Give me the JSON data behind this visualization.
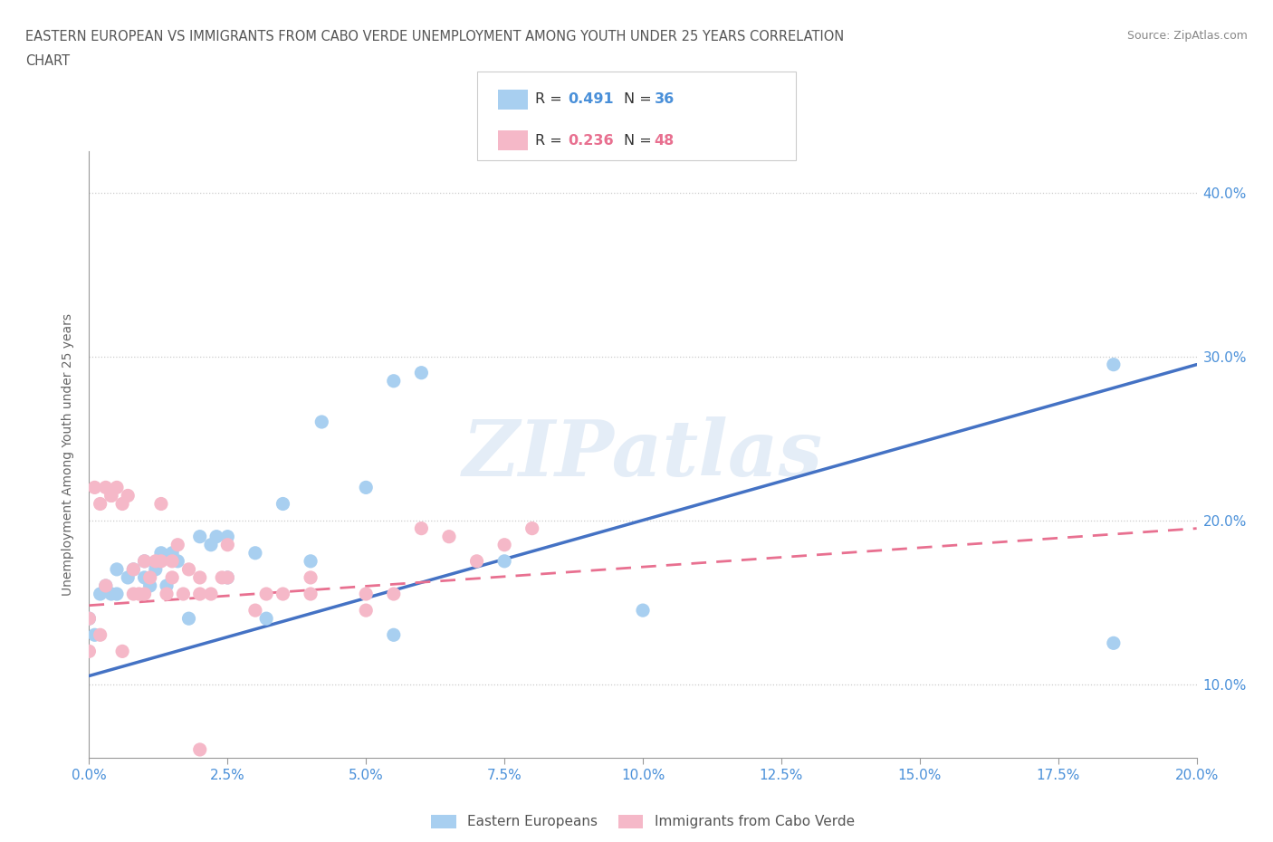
{
  "title_line1": "EASTERN EUROPEAN VS IMMIGRANTS FROM CABO VERDE UNEMPLOYMENT AMONG YOUTH UNDER 25 YEARS CORRELATION",
  "title_line2": "CHART",
  "source_text": "Source: ZipAtlas.com",
  "xlabel_ticks": [
    "0.0%",
    "2.5%",
    "5.0%",
    "7.5%",
    "10.0%",
    "12.5%",
    "15.0%",
    "17.5%",
    "20.0%"
  ],
  "ylabel_label": "Unemployment Among Youth under 25 years",
  "legend_label1": "Eastern Europeans",
  "legend_label2": "Immigrants from Cabo Verde",
  "color_blue": "#A8CFF0",
  "color_pink": "#F5B8C8",
  "color_blue_text": "#4A90D9",
  "color_pink_text": "#E87090",
  "color_blue_line": "#4472C4",
  "color_pink_line": "#E87090",
  "watermark": "ZIPatlas",
  "xlim": [
    0.0,
    0.2
  ],
  "ylim": [
    0.055,
    0.425
  ],
  "blue_scatter_x": [
    0.0,
    0.001,
    0.002,
    0.003,
    0.004,
    0.005,
    0.005,
    0.007,
    0.008,
    0.01,
    0.01,
    0.011,
    0.012,
    0.013,
    0.014,
    0.015,
    0.016,
    0.018,
    0.02,
    0.022,
    0.023,
    0.025,
    0.025,
    0.03,
    0.032,
    0.035,
    0.04,
    0.042,
    0.05,
    0.055,
    0.055,
    0.06,
    0.075,
    0.1,
    0.185,
    0.185
  ],
  "blue_scatter_y": [
    0.14,
    0.13,
    0.155,
    0.16,
    0.155,
    0.155,
    0.17,
    0.165,
    0.17,
    0.175,
    0.165,
    0.16,
    0.17,
    0.18,
    0.16,
    0.18,
    0.175,
    0.14,
    0.19,
    0.185,
    0.19,
    0.19,
    0.165,
    0.18,
    0.14,
    0.21,
    0.175,
    0.26,
    0.22,
    0.285,
    0.13,
    0.29,
    0.175,
    0.145,
    0.295,
    0.125
  ],
  "pink_scatter_x": [
    0.0,
    0.0,
    0.001,
    0.002,
    0.002,
    0.003,
    0.003,
    0.004,
    0.004,
    0.005,
    0.006,
    0.006,
    0.007,
    0.008,
    0.008,
    0.009,
    0.01,
    0.01,
    0.011,
    0.012,
    0.013,
    0.013,
    0.014,
    0.015,
    0.015,
    0.016,
    0.017,
    0.018,
    0.02,
    0.02,
    0.022,
    0.024,
    0.025,
    0.025,
    0.03,
    0.032,
    0.035,
    0.04,
    0.04,
    0.05,
    0.05,
    0.055,
    0.06,
    0.065,
    0.07,
    0.075,
    0.08,
    0.02
  ],
  "pink_scatter_y": [
    0.14,
    0.12,
    0.22,
    0.21,
    0.13,
    0.22,
    0.16,
    0.215,
    0.215,
    0.22,
    0.12,
    0.21,
    0.215,
    0.155,
    0.17,
    0.155,
    0.155,
    0.175,
    0.165,
    0.175,
    0.175,
    0.21,
    0.155,
    0.165,
    0.175,
    0.185,
    0.155,
    0.17,
    0.165,
    0.155,
    0.155,
    0.165,
    0.185,
    0.165,
    0.145,
    0.155,
    0.155,
    0.155,
    0.165,
    0.155,
    0.145,
    0.155,
    0.195,
    0.19,
    0.175,
    0.185,
    0.195,
    0.06
  ],
  "blue_trend_x": [
    0.0,
    0.2
  ],
  "blue_trend_y": [
    0.105,
    0.295
  ],
  "pink_trend_x": [
    0.0,
    0.2
  ],
  "pink_trend_y": [
    0.148,
    0.195
  ],
  "grid_color": "#CCCCCC",
  "bg_color": "#FFFFFF",
  "title_color": "#555555",
  "axis_color": "#999999",
  "tick_color": "#4A90D9"
}
